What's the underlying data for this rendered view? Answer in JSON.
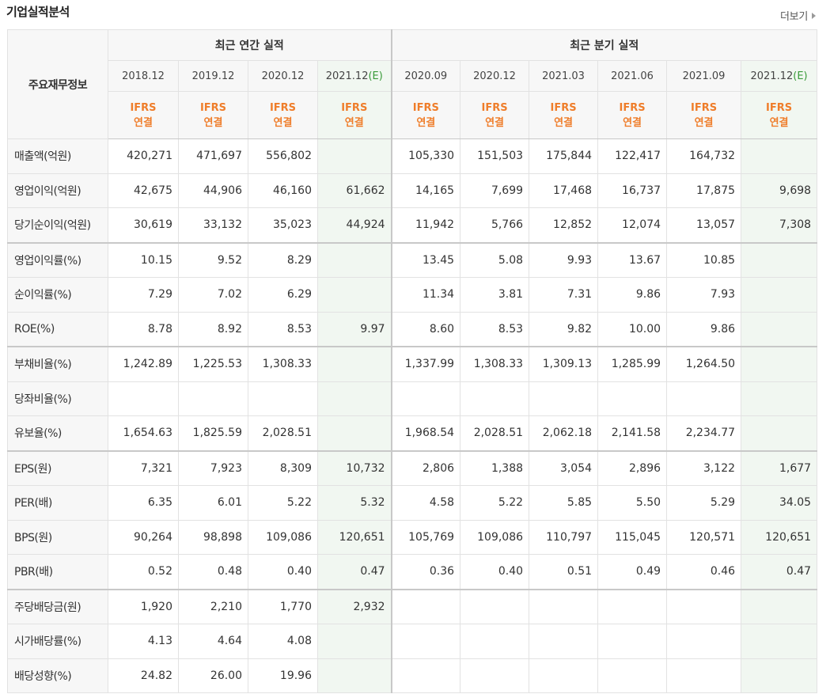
{
  "title": "기업실적분석",
  "more": "더보기",
  "header": {
    "row_label": "주요재무정보",
    "annual_title": "최근 연간 실적",
    "quarter_title": "최근 분기 실적",
    "annual_periods": [
      {
        "date": "2018.12",
        "est": ""
      },
      {
        "date": "2019.12",
        "est": ""
      },
      {
        "date": "2020.12",
        "est": ""
      },
      {
        "date": "2021.12",
        "est": "(E)"
      }
    ],
    "quarter_periods": [
      {
        "date": "2020.09",
        "est": ""
      },
      {
        "date": "2020.12",
        "est": ""
      },
      {
        "date": "2021.03",
        "est": ""
      },
      {
        "date": "2021.06",
        "est": ""
      },
      {
        "date": "2021.09",
        "est": ""
      },
      {
        "date": "2021.12",
        "est": "(E)"
      }
    ],
    "ifrs_line1": "IFRS",
    "ifrs_line2": "연결"
  },
  "rows": [
    {
      "label": "매출액(억원)",
      "values": [
        "420,271",
        "471,697",
        "556,802",
        "",
        "105,330",
        "151,503",
        "175,844",
        "122,417",
        "164,732",
        ""
      ]
    },
    {
      "label": "영업이익(억원)",
      "values": [
        "42,675",
        "44,906",
        "46,160",
        "61,662",
        "14,165",
        "7,699",
        "17,468",
        "16,737",
        "17,875",
        "9,698"
      ]
    },
    {
      "label": "당기순이익(억원)",
      "values": [
        "30,619",
        "33,132",
        "35,023",
        "44,924",
        "11,942",
        "5,766",
        "12,852",
        "12,074",
        "13,057",
        "7,308"
      ]
    },
    {
      "label": "영업이익률(%)",
      "values": [
        "10.15",
        "9.52",
        "8.29",
        "",
        "13.45",
        "5.08",
        "9.93",
        "13.67",
        "10.85",
        ""
      ]
    },
    {
      "label": "순이익률(%)",
      "values": [
        "7.29",
        "7.02",
        "6.29",
        "",
        "11.34",
        "3.81",
        "7.31",
        "9.86",
        "7.93",
        ""
      ]
    },
    {
      "label": "ROE(%)",
      "values": [
        "8.78",
        "8.92",
        "8.53",
        "9.97",
        "8.60",
        "8.53",
        "9.82",
        "10.00",
        "9.86",
        ""
      ]
    },
    {
      "label": "부채비율(%)",
      "values": [
        "1,242.89",
        "1,225.53",
        "1,308.33",
        "",
        "1,337.99",
        "1,308.33",
        "1,309.13",
        "1,285.99",
        "1,264.50",
        ""
      ]
    },
    {
      "label": "당좌비율(%)",
      "values": [
        "",
        "",
        "",
        "",
        "",
        "",
        "",
        "",
        "",
        ""
      ]
    },
    {
      "label": "유보율(%)",
      "values": [
        "1,654.63",
        "1,825.59",
        "2,028.51",
        "",
        "1,968.54",
        "2,028.51",
        "2,062.18",
        "2,141.58",
        "2,234.77",
        ""
      ]
    },
    {
      "label": "EPS(원)",
      "values": [
        "7,321",
        "7,923",
        "8,309",
        "10,732",
        "2,806",
        "1,388",
        "3,054",
        "2,896",
        "3,122",
        "1,677"
      ]
    },
    {
      "label": "PER(배)",
      "values": [
        "6.35",
        "6.01",
        "5.22",
        "5.32",
        "4.58",
        "5.22",
        "5.85",
        "5.50",
        "5.29",
        "34.05"
      ]
    },
    {
      "label": "BPS(원)",
      "values": [
        "90,264",
        "98,898",
        "109,086",
        "120,651",
        "105,769",
        "109,086",
        "110,797",
        "115,045",
        "120,571",
        "120,651"
      ]
    },
    {
      "label": "PBR(배)",
      "values": [
        "0.52",
        "0.48",
        "0.40",
        "0.47",
        "0.36",
        "0.40",
        "0.51",
        "0.49",
        "0.46",
        "0.47"
      ]
    },
    {
      "label": "주당배당금(원)",
      "values": [
        "1,920",
        "2,210",
        "1,770",
        "2,932",
        "",
        "",
        "",
        "",
        "",
        ""
      ]
    },
    {
      "label": "시가배당률(%)",
      "values": [
        "4.13",
        "4.64",
        "4.08",
        "",
        "",
        "",
        "",
        "",
        "",
        ""
      ]
    },
    {
      "label": "배당성향(%)",
      "values": [
        "24.82",
        "26.00",
        "19.96",
        "",
        "",
        "",
        "",
        "",
        "",
        ""
      ]
    }
  ]
}
